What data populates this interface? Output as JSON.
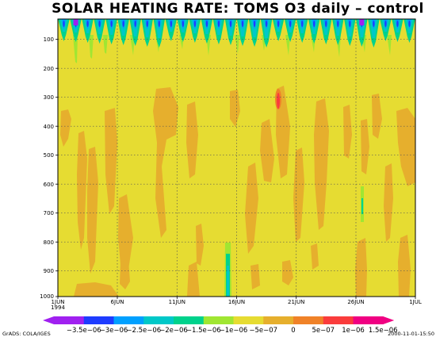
{
  "chart_data": {
    "type": "heatmap",
    "title": "SOLAR HEATING RATE: TOMS O3 daily – control",
    "x_ticks": [
      "1JUN",
      "6JUN",
      "11JUN",
      "16JUN",
      "21JUN",
      "26JUN",
      "1JUL"
    ],
    "x_year": "1994",
    "y_ticks": [
      "100",
      "200",
      "300",
      "400",
      "500",
      "600",
      "700",
      "800",
      "900",
      "1000"
    ],
    "y_range": [
      1000,
      30
    ],
    "grid": true,
    "colorbar": {
      "labels": [
        "−3.5e−06",
        "−3e−06",
        "−2.5e−06",
        "−2e−06",
        "−1.5e−06",
        "−1e−06",
        "−5e−07",
        "0",
        "5e−07",
        "1e−06",
        "1.5e−06"
      ],
      "colors": [
        "#a020f0",
        "#1e3cff",
        "#00a0ff",
        "#00c8c8",
        "#00d28c",
        "#a0e632",
        "#e6dc32",
        "#e6af2d",
        "#f08228",
        "#fa3c3c",
        "#f00082"
      ],
      "background_value": "0"
    },
    "fields": [
      {
        "value": "5e−07",
        "region": "broad orange patches throughout 300–900 hPa"
      },
      {
        "value": "−1e−06 to −3.5e−06",
        "region": "near top (30–150 hPa), daily pulses"
      },
      {
        "value": "1e−06",
        "region": "small spot near 20JUN, ~280–370 hPa"
      }
    ]
  },
  "footer": {
    "left": "GrADS: COLA/IGES",
    "right": "2000-11-01-15:50"
  }
}
